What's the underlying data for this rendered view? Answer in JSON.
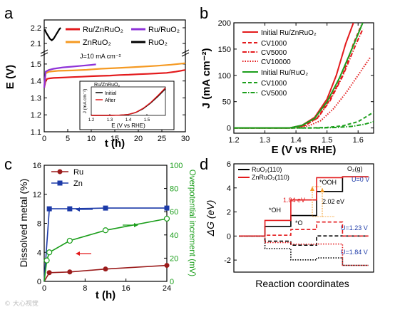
{
  "colors": {
    "red": "#e31a1c",
    "green": "#1b9e1b",
    "purple": "#8e33d8",
    "orange": "#f59a23",
    "black": "#000000",
    "darkred": "#9b1c1c",
    "blue": "#1c3aa8"
  },
  "watermark": "© 大心视觉",
  "chart_data": [
    {
      "panel": "a",
      "type": "line",
      "xlabel": "t (h)",
      "ylabel": "E (V)",
      "xlim": [
        0,
        30
      ],
      "ylim": [
        1.1,
        2.25
      ],
      "axis_break": true,
      "yticks": [
        "1.1",
        "1.2",
        "1.3",
        "1.4",
        "1.5",
        "2.1",
        "2.2"
      ],
      "xticks": [
        "0",
        "5",
        "10",
        "15",
        "20",
        "25",
        "30"
      ],
      "annotation": "J=10 mA cm⁻²",
      "legend": [
        "Ru/ZnRuO₂",
        "ZnRuO₂",
        "Ru/RuO₂",
        "RuO₂"
      ],
      "series": [
        {
          "name": "Ru/ZnRuO₂",
          "color": "red",
          "x": [
            0,
            0.3,
            0.6,
            1,
            2,
            4,
            6,
            8,
            10,
            12,
            14,
            16,
            18,
            20,
            22,
            24,
            26,
            28,
            30
          ],
          "y": [
            1.36,
            1.4,
            1.412,
            1.415,
            1.418,
            1.42,
            1.423,
            1.425,
            1.428,
            1.43,
            1.432,
            1.435,
            1.437,
            1.44,
            1.442,
            1.445,
            1.448,
            1.455,
            1.465
          ]
        },
        {
          "name": "ZnRuO₂",
          "color": "orange",
          "x": [
            0,
            0.3,
            1,
            3,
            6,
            9,
            12,
            15,
            18,
            21,
            24,
            27,
            30
          ],
          "y": [
            1.36,
            1.445,
            1.455,
            1.46,
            1.462,
            1.466,
            1.472,
            1.476,
            1.48,
            1.485,
            1.49,
            1.496,
            1.505
          ]
        },
        {
          "name": "Ru/RuO₂",
          "color": "purple",
          "x": [
            0,
            0.3,
            1,
            2,
            4,
            6,
            8,
            10,
            11
          ],
          "y": [
            1.36,
            1.455,
            1.465,
            1.472,
            1.48,
            1.485,
            1.49,
            1.495,
            1.498
          ]
        },
        {
          "name": "RuO₂",
          "color": "black",
          "x": [
            0.1,
            0.4,
            0.8,
            1.2,
            1.6,
            2,
            2.4,
            2.8,
            3.2,
            3.5
          ],
          "y": [
            2.19,
            2.17,
            2.15,
            2.13,
            2.12,
            2.13,
            2.15,
            2.17,
            2.19,
            2.2
          ]
        }
      ],
      "inset": {
        "title": "Ru/ZnRuO₂",
        "xlabel": "E (V vs RHE)",
        "ylabel": "J (mA cm⁻²)",
        "xticks": [
          "1.2",
          "1.3",
          "1.4",
          "1.5"
        ],
        "xlim": [
          1.2,
          1.6
        ],
        "ylim": [
          0,
          60
        ],
        "legend": [
          "Initial",
          "After"
        ],
        "series": [
          {
            "name": "Initial",
            "color": "black",
            "x": [
              1.2,
              1.3,
              1.35,
              1.4,
              1.44,
              1.48,
              1.52,
              1.56,
              1.6
            ],
            "y": [
              0,
              0,
              0.5,
              2,
              6,
              14,
              26,
              40,
              56
            ]
          },
          {
            "name": "After",
            "color": "red",
            "x": [
              1.2,
              1.3,
              1.35,
              1.4,
              1.44,
              1.48,
              1.52,
              1.56,
              1.6
            ],
            "y": [
              0,
              0,
              0.5,
              2,
              6.5,
              15,
              27,
              42,
              58
            ]
          }
        ]
      }
    },
    {
      "panel": "b",
      "type": "line",
      "xlabel": "E (V vs RHE)",
      "ylabel": "J (mA cm⁻²)",
      "xlim": [
        1.2,
        1.65
      ],
      "ylim": [
        -10,
        200
      ],
      "xticks": [
        "1.2",
        "1.3",
        "1.4",
        "1.5",
        "1.6"
      ],
      "yticks": [
        "0",
        "50",
        "100",
        "150",
        "200"
      ],
      "legend": [
        "Initial Ru/ZnRuO₂",
        "CV1000",
        "CV5000",
        "CV10000",
        "Initial Ru/RuO₂",
        "CV1000",
        "CV5000"
      ],
      "series": [
        {
          "name": "Initial Ru/ZnRuO₂",
          "color": "red",
          "style": "solid",
          "x": [
            1.2,
            1.38,
            1.42,
            1.46,
            1.5,
            1.53,
            1.56,
            1.585
          ],
          "y": [
            0,
            0,
            5,
            20,
            55,
            100,
            160,
            200
          ]
        },
        {
          "name": "CV1000",
          "color": "red",
          "style": "dash",
          "x": [
            1.2,
            1.39,
            1.43,
            1.47,
            1.51,
            1.55,
            1.585,
            1.61
          ],
          "y": [
            0,
            0,
            5,
            20,
            55,
            100,
            160,
            195
          ]
        },
        {
          "name": "CV5000",
          "color": "red",
          "style": "dashdot",
          "x": [
            1.2,
            1.39,
            1.43,
            1.47,
            1.51,
            1.55,
            1.59,
            1.615
          ],
          "y": [
            0,
            0,
            5,
            19,
            52,
            98,
            155,
            188
          ]
        },
        {
          "name": "CV10000",
          "color": "red",
          "style": "dot",
          "x": [
            1.2,
            1.4,
            1.44,
            1.48,
            1.52,
            1.56,
            1.6,
            1.64
          ],
          "y": [
            0,
            0,
            4,
            14,
            36,
            66,
            100,
            135
          ]
        },
        {
          "name": "Initial Ru/RuO₂",
          "color": "green",
          "style": "solid",
          "x": [
            1.2,
            1.38,
            1.42,
            1.46,
            1.5,
            1.54,
            1.58,
            1.615
          ],
          "y": [
            0,
            0,
            5,
            18,
            50,
            95,
            150,
            200
          ]
        },
        {
          "name": "CV1000",
          "color": "green",
          "style": "dash",
          "x": [
            1.2,
            1.45,
            1.5,
            1.55,
            1.6,
            1.65
          ],
          "y": [
            0,
            0,
            1,
            4,
            12,
            30
          ]
        },
        {
          "name": "CV5000",
          "color": "green",
          "style": "dashdot",
          "x": [
            1.2,
            1.48,
            1.53,
            1.58,
            1.62,
            1.65
          ],
          "y": [
            0,
            0,
            1,
            3,
            7,
            12
          ]
        }
      ]
    },
    {
      "panel": "c",
      "type": "line",
      "xlabel": "t (h)",
      "ylabel": "Dissolved metal (%)",
      "y2label": "Overpotential increment (mV)",
      "xlim": [
        0,
        24
      ],
      "ylim": [
        0,
        16
      ],
      "y2lim": [
        0,
        100
      ],
      "xticks": [
        "0",
        "8",
        "16",
        "24"
      ],
      "yticks": [
        "0",
        "4",
        "8",
        "12",
        "16"
      ],
      "y2ticks": [
        "0",
        "20",
        "40",
        "60",
        "80",
        "100"
      ],
      "series": [
        {
          "name": "Ru",
          "color": "darkred",
          "axis": "left",
          "x": [
            0,
            1,
            5,
            12,
            24
          ],
          "y": [
            0,
            1.2,
            1.3,
            1.7,
            2.2
          ]
        },
        {
          "name": "Zn",
          "color": "blue",
          "axis": "left",
          "x": [
            0,
            1,
            5,
            12,
            24
          ],
          "y": [
            0,
            10,
            10,
            10.1,
            10.1
          ]
        },
        {
          "name": "Overpotential increment",
          "color": "green",
          "axis": "right",
          "x": [
            0,
            0.5,
            1,
            5,
            12,
            24
          ],
          "y": [
            0,
            18,
            25,
            35,
            44,
            54
          ]
        }
      ]
    },
    {
      "panel": "d",
      "type": "line",
      "xlabel": "Reaction coordinates",
      "ylabel": "ΔG (eV)",
      "ylim": [
        -3,
        6
      ],
      "yticks": [
        "-2",
        "0",
        "2",
        "4",
        "6"
      ],
      "legend": [
        "RuO₂(110)",
        "ZnRuO₂(110)"
      ],
      "labels": {
        "o2": "O₂(g)",
        "u0": "U=0 V",
        "u123": "U=1.23 V",
        "u184": "U=1.84 V",
        "oh": "*OH",
        "o": "*O",
        "ooh": "*OOH",
        "e184": "1.84 eV",
        "e202": "2.02 eV"
      },
      "series": [
        {
          "name": "RuO₂(110) U=0 V",
          "color": "black",
          "style": "solid",
          "steps": [
            0,
            0.8,
            1.7,
            3.7,
            4.92
          ]
        },
        {
          "name": "ZnRuO₂(110) U=0 V",
          "color": "red",
          "style": "solid",
          "steps": [
            0,
            1.3,
            3.0,
            4.85,
            4.92
          ]
        },
        {
          "name": "RuO₂(110) U=1.23 V",
          "color": "black",
          "style": "dash",
          "steps": [
            0,
            -0.43,
            -0.76,
            0.01,
            0.0
          ]
        },
        {
          "name": "ZnRuO₂(110) U=1.23 V",
          "color": "red",
          "style": "dash",
          "steps": [
            0,
            0.07,
            0.54,
            1.16,
            0.0
          ]
        },
        {
          "name": "RuO₂(110) U=1.84 V",
          "color": "black",
          "style": "dot",
          "steps": [
            0,
            -1.04,
            -1.98,
            -1.82,
            -2.44
          ]
        },
        {
          "name": "ZnRuO₂(110) U=1.84 V",
          "color": "red",
          "style": "dot",
          "steps": [
            0,
            -0.54,
            -0.68,
            -0.67,
            -2.44
          ]
        }
      ]
    }
  ]
}
